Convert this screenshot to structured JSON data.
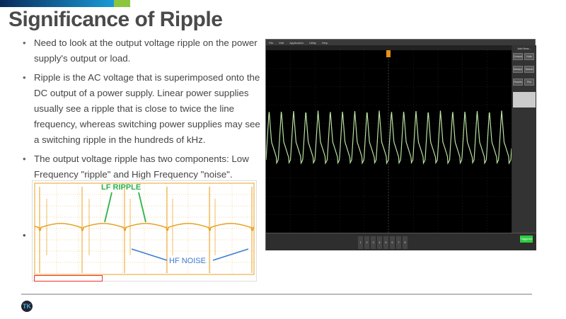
{
  "slide": {
    "title": "Significance of Ripple",
    "bullets": [
      "Need to look at the output voltage ripple on the power supply's output or load.",
      "Ripple is the AC voltage that is superimposed onto the DC output of a power supply.  Linear power supplies usually see a ripple that is close to twice the line frequency, whereas switching power supplies may see a switching ripple in the hundreds of kHz.",
      "The output voltage ripple has two components: Low Frequency \"ripple\" and High Frequency \"noise\"."
    ],
    "extra_bullet": "•",
    "logo_text": "TK"
  },
  "figure": {
    "lf_label": "LF RIPPLE",
    "hf_label": "HF NOISE",
    "trace_color": "#e8a020",
    "lf_color": "#2bb34a",
    "hf_color": "#3a7bd5"
  },
  "scope": {
    "menu": [
      "File",
      "Edit",
      "Application",
      "Utility",
      "Help"
    ],
    "side_title": "Add New...",
    "side_buttons": [
      "Cursors",
      "Note",
      "Measure",
      "Search",
      "Results Table",
      "Plot"
    ],
    "channels": [
      "1",
      "2",
      "3",
      "4",
      "5",
      "6",
      "7",
      "8"
    ],
    "status": "Triggered",
    "trace_color": "#b8e0a0"
  }
}
